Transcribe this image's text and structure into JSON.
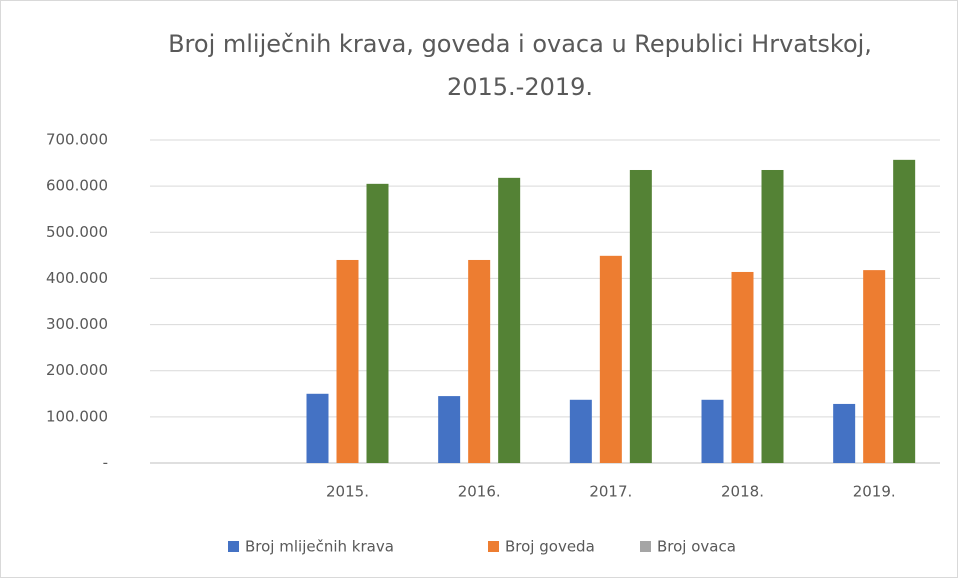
{
  "chart_data": {
    "type": "bar",
    "title": [
      "Broj mliječnih krava, goveda i ovaca u Republici Hrvatskoj,",
      "2015.-2019."
    ],
    "categories": [
      null,
      "2015.",
      "2016.",
      "2017.",
      "2018.",
      "2019."
    ],
    "series": [
      {
        "name": "Broj mliječnih krava",
        "color": "#4472c4",
        "values": [
          null,
          150000,
          145000,
          137000,
          137000,
          128000
        ]
      },
      {
        "name": "Broj goveda",
        "color": "#ed7d31",
        "values": [
          null,
          440000,
          440000,
          449000,
          414000,
          418000
        ]
      },
      {
        "name": "Broj ovaca",
        "color": "#548235",
        "legend_color": "#a5a5a5",
        "values": [
          null,
          605000,
          618000,
          635000,
          635000,
          657000
        ]
      }
    ],
    "ylim": [
      0,
      700000
    ],
    "yticks": [
      {
        "value": 0,
        "label": "-"
      },
      {
        "value": 100000,
        "label": "100.000"
      },
      {
        "value": 200000,
        "label": "200.000"
      },
      {
        "value": 300000,
        "label": "300.000"
      },
      {
        "value": 400000,
        "label": "400.000"
      },
      {
        "value": 500000,
        "label": "500.000"
      },
      {
        "value": 600000,
        "label": "600.000"
      },
      {
        "value": 700000,
        "label": "700.000"
      }
    ],
    "grid": true,
    "legend": "bottom"
  }
}
